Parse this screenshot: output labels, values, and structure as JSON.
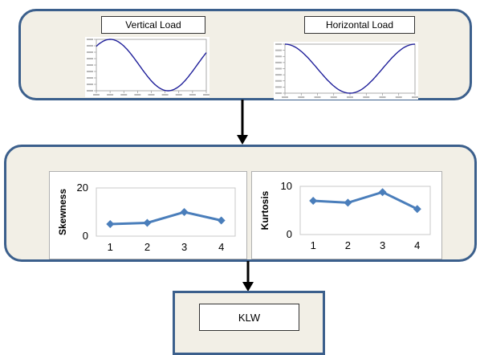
{
  "top_panel": {
    "vertical_label": "Vertical Load",
    "horizontal_label": "Horizontal Load"
  },
  "klw_label": "KLW",
  "colors": {
    "panel_border": "#3b5f8c",
    "panel_fill": "#f2efe6",
    "sine": "#1f1f9a",
    "series": "#4a7ebb"
  },
  "chart_data": [
    {
      "type": "line",
      "title": "",
      "xlabel": "",
      "ylabel": "Skewness",
      "x": [
        1,
        2,
        3,
        4
      ],
      "series": [
        {
          "values": [
            5,
            5.5,
            10,
            6.5
          ]
        }
      ],
      "ylim": [
        0,
        20
      ],
      "yticks": [
        0,
        20
      ],
      "grid": "horizontal"
    },
    {
      "type": "line",
      "title": "",
      "xlabel": "",
      "ylabel": "Kurtosis",
      "x": [
        1,
        2,
        3,
        4
      ],
      "series": [
        {
          "values": [
            7,
            6.6,
            8.8,
            5.3
          ]
        }
      ],
      "ylim": [
        0,
        10
      ],
      "yticks": [
        0,
        10
      ],
      "grid": "horizontal"
    }
  ]
}
